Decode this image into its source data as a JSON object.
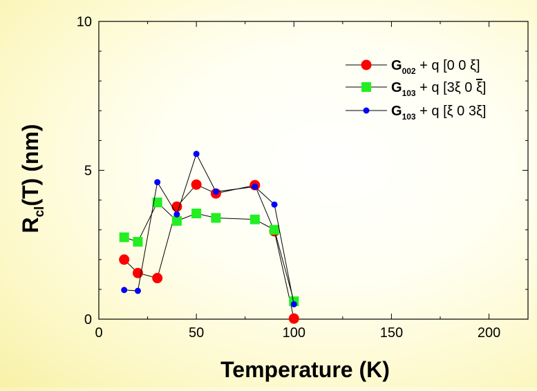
{
  "chart_data": {
    "type": "scatter",
    "title": "",
    "xlabel": "Temperature (K)",
    "ylabel": {
      "main": "R",
      "sub": "cl",
      "rest": "(T) (nm)"
    },
    "xlim": [
      0,
      220
    ],
    "ylim": [
      0,
      10
    ],
    "x_ticks": [
      "0",
      "50",
      "100",
      "150",
      "200"
    ],
    "y_ticks": [
      "0",
      "5",
      "10"
    ],
    "grid": false,
    "legend_position": "top-right",
    "series": [
      {
        "name": "G002 + q [0 0 ξ]",
        "legend": {
          "main": "G",
          "sub": "002",
          "rest": " + q [0 0 ξ]"
        },
        "marker": "circle",
        "color": "#ff0000",
        "x": [
          13,
          20,
          30,
          40,
          50,
          60,
          80,
          90,
          100
        ],
        "y": [
          2.0,
          1.55,
          1.38,
          3.78,
          4.52,
          4.22,
          4.5,
          2.95,
          0.02
        ]
      },
      {
        "name": "G103 + q [3ξ 0 ξ̄]",
        "legend": {
          "main": "G",
          "sub": "103",
          "rest": " + q [3ξ 0 ",
          "bar": "ξ",
          "close": "]"
        },
        "marker": "square",
        "color": "#22ee22",
        "x": [
          13,
          20,
          30,
          40,
          50,
          60,
          80,
          90,
          100
        ],
        "y": [
          2.75,
          2.6,
          3.92,
          3.3,
          3.55,
          3.4,
          3.35,
          3.0,
          0.6
        ]
      },
      {
        "name": "G103 + q [ξ 0 3ξ]",
        "legend": {
          "main": "G",
          "sub": "103",
          "rest": " + q [ξ 0 3ξ]"
        },
        "marker": "circle-small",
        "color": "#0000ff",
        "x": [
          13,
          20,
          30,
          40,
          50,
          60,
          80,
          90,
          100
        ],
        "y": [
          0.98,
          0.95,
          4.6,
          3.52,
          5.55,
          4.28,
          4.45,
          3.85,
          0.5
        ]
      }
    ]
  }
}
